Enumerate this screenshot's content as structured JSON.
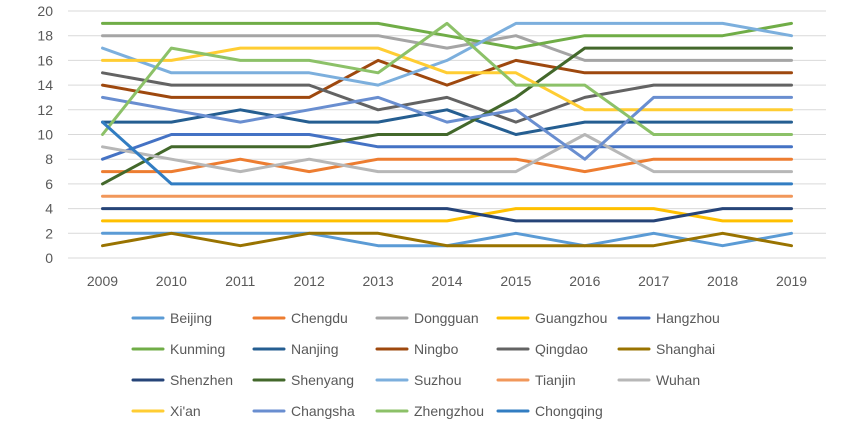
{
  "chart_data": {
    "type": "line",
    "x": [
      "2009",
      "2010",
      "2011",
      "2012",
      "2013",
      "2014",
      "2015",
      "2016",
      "2017",
      "2018",
      "2019"
    ],
    "ylim": [
      0,
      20
    ],
    "yticks": [
      0,
      2,
      4,
      6,
      8,
      10,
      12,
      14,
      16,
      18,
      20
    ],
    "grid": true,
    "legend_position": "bottom",
    "series": [
      {
        "name": "Beijing",
        "color": "#5B9BD5",
        "values": [
          2,
          2,
          2,
          2,
          1,
          1,
          2,
          1,
          2,
          1,
          2
        ]
      },
      {
        "name": "Chengdu",
        "color": "#ED7D31",
        "values": [
          7,
          7,
          8,
          7,
          8,
          8,
          8,
          7,
          8,
          8,
          8
        ]
      },
      {
        "name": "Dongguan",
        "color": "#A5A5A5",
        "values": [
          18,
          18,
          18,
          18,
          18,
          17,
          18,
          16,
          16,
          16,
          16
        ]
      },
      {
        "name": "Guangzhou",
        "color": "#FFC000",
        "values": [
          3,
          3,
          3,
          3,
          3,
          3,
          4,
          4,
          4,
          3,
          3
        ]
      },
      {
        "name": "Hangzhou",
        "color": "#4472C4",
        "values": [
          8,
          10,
          10,
          10,
          9,
          9,
          9,
          9,
          9,
          9,
          9
        ]
      },
      {
        "name": "Kunming",
        "color": "#70AD47",
        "values": [
          19,
          19,
          19,
          19,
          19,
          18,
          17,
          18,
          18,
          18,
          19
        ]
      },
      {
        "name": "Nanjing",
        "color": "#255E91",
        "values": [
          11,
          11,
          12,
          11,
          11,
          12,
          10,
          11,
          11,
          11,
          11
        ]
      },
      {
        "name": "Ningbo",
        "color": "#9E480E",
        "values": [
          14,
          13,
          13,
          13,
          16,
          14,
          16,
          15,
          15,
          15,
          15
        ]
      },
      {
        "name": "Qingdao",
        "color": "#636363",
        "values": [
          15,
          14,
          14,
          14,
          12,
          13,
          11,
          13,
          14,
          14,
          14
        ]
      },
      {
        "name": "Shanghai",
        "color": "#997300",
        "values": [
          1,
          2,
          1,
          2,
          2,
          1,
          1,
          1,
          1,
          2,
          1
        ]
      },
      {
        "name": "Shenzhen",
        "color": "#264478",
        "values": [
          4,
          4,
          4,
          4,
          4,
          4,
          3,
          3,
          3,
          4,
          4
        ]
      },
      {
        "name": "Shenyang",
        "color": "#43682B",
        "values": [
          6,
          9,
          9,
          9,
          10,
          10,
          13,
          17,
          17,
          17,
          17
        ]
      },
      {
        "name": "Suzhou",
        "color": "#7CAFDD",
        "values": [
          17,
          15,
          15,
          15,
          14,
          16,
          19,
          19,
          19,
          19,
          18
        ]
      },
      {
        "name": "Tianjin",
        "color": "#F1975A",
        "values": [
          5,
          5,
          5,
          5,
          5,
          5,
          5,
          5,
          5,
          5,
          5
        ]
      },
      {
        "name": "Wuhan",
        "color": "#B7B7B7",
        "values": [
          9,
          8,
          7,
          8,
          7,
          7,
          7,
          10,
          7,
          7,
          7
        ]
      },
      {
        "name": "Xi'an",
        "color": "#FFCD33",
        "values": [
          16,
          16,
          17,
          17,
          17,
          15,
          15,
          12,
          12,
          12,
          12
        ]
      },
      {
        "name": "Changsha",
        "color": "#698ED0",
        "values": [
          13,
          12,
          11,
          12,
          13,
          11,
          12,
          8,
          13,
          13,
          13
        ]
      },
      {
        "name": "Zhengzhou",
        "color": "#8CC168",
        "values": [
          10,
          17,
          16,
          16,
          15,
          19,
          14,
          14,
          10,
          10,
          10
        ]
      },
      {
        "name": "Chongqing",
        "color": "#327DC2",
        "values": [
          11,
          6,
          6,
          6,
          6,
          6,
          6,
          6,
          6,
          6,
          6
        ]
      }
    ]
  }
}
